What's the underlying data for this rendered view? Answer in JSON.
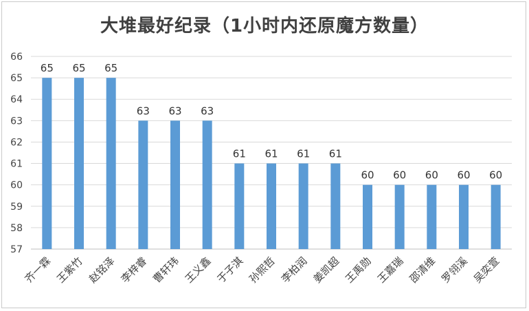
{
  "chart_data": {
    "type": "bar",
    "title": "大堆最好纪录（1小时内还原魔方数量）",
    "categories": [
      "齐一霖",
      "王紫竹",
      "赵铭泽",
      "李梓睿",
      "曹轩玮",
      "王义鑫",
      "于子淇",
      "孙熙哲",
      "李柏润",
      "姜凯超",
      "王禹勋",
      "王嘉瑞",
      "邵清维",
      "罗翎溪",
      "吴奕萱"
    ],
    "values": [
      65,
      65,
      65,
      63,
      63,
      63,
      61,
      61,
      61,
      61,
      60,
      60,
      60,
      60,
      60
    ],
    "ylim": [
      57,
      66
    ],
    "yticks": [
      57,
      58,
      59,
      60,
      61,
      62,
      63,
      64,
      65,
      66
    ],
    "grid": true,
    "data_labels": true,
    "bar_color": "#5b9bd5",
    "grid_color": "#d9d9d9"
  }
}
